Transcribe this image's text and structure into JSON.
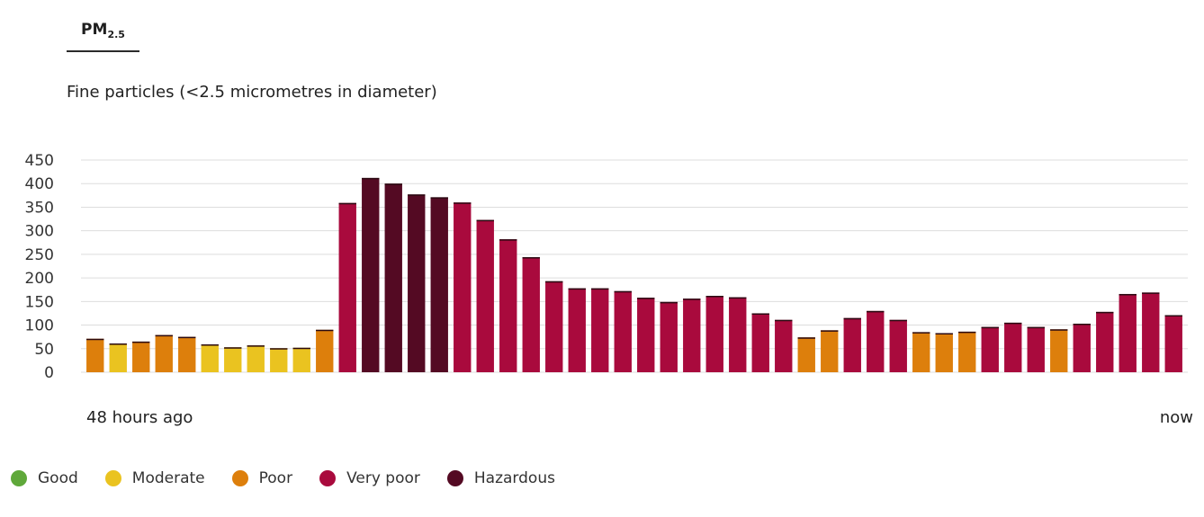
{
  "tab": {
    "label": "PM",
    "sub": "2.5"
  },
  "subtitle": "Fine particles (<2.5 micrometres in diameter)",
  "chart_data": {
    "type": "bar",
    "ylim": [
      0,
      450
    ],
    "yticks": [
      0,
      50,
      100,
      150,
      200,
      250,
      300,
      350,
      400,
      450
    ],
    "grid": true,
    "x_start_label": "48 hours ago",
    "x_end_label": "now",
    "values": [
      71,
      61,
      65,
      79,
      75,
      59,
      53,
      57,
      51,
      52,
      90,
      359,
      412,
      400,
      377,
      371,
      360,
      323,
      282,
      244,
      193,
      178,
      178,
      172,
      158,
      149,
      156,
      162,
      159,
      125,
      111,
      74,
      89,
      115,
      130,
      111,
      85,
      83,
      86,
      96,
      105,
      96,
      91,
      103,
      128,
      166,
      169,
      121
    ],
    "categories_level": [
      "poor",
      "moderate",
      "poor",
      "poor",
      "poor",
      "moderate",
      "moderate",
      "moderate",
      "moderate",
      "moderate",
      "poor",
      "very_poor",
      "hazardous",
      "hazardous",
      "hazardous",
      "hazardous",
      "very_poor",
      "very_poor",
      "very_poor",
      "very_poor",
      "very_poor",
      "very_poor",
      "very_poor",
      "very_poor",
      "very_poor",
      "very_poor",
      "very_poor",
      "very_poor",
      "very_poor",
      "very_poor",
      "very_poor",
      "poor",
      "poor",
      "very_poor",
      "very_poor",
      "very_poor",
      "poor",
      "poor",
      "poor",
      "very_poor",
      "very_poor",
      "very_poor",
      "poor",
      "very_poor",
      "very_poor",
      "very_poor",
      "very_poor",
      "very_poor"
    ],
    "colors": {
      "good": "#5fa83a",
      "moderate": "#eac320",
      "poor": "#dd7f0c",
      "very_poor": "#a90a3d",
      "hazardous": "#540a23"
    }
  },
  "legend": [
    {
      "key": "good",
      "label": "Good"
    },
    {
      "key": "moderate",
      "label": "Moderate"
    },
    {
      "key": "poor",
      "label": "Poor"
    },
    {
      "key": "very_poor",
      "label": "Very poor"
    },
    {
      "key": "hazardous",
      "label": "Hazardous"
    }
  ]
}
